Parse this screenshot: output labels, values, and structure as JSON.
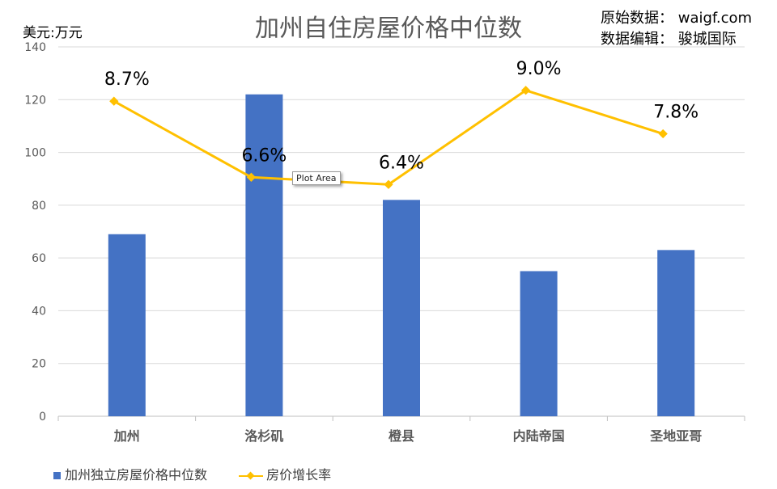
{
  "header": {
    "title": "加州自住房屋价格中位数",
    "unit_label": "美元:万元",
    "source_line": "原始数据：  waigf.com",
    "editor_line": "数据编辑：  骏城国际"
  },
  "tooltip": {
    "label": "Plot Area"
  },
  "colors": {
    "bar": "#4472C4",
    "line": "#FFC000",
    "grid": "#D9D9D9",
    "axis_text": "#595959"
  },
  "legend": {
    "bar_label": "加州独立房屋价格中位数",
    "line_label": "房价增长率"
  },
  "chart_data": {
    "type": "bar",
    "categories": [
      "加州",
      "洛杉矶",
      "橙县",
      "内陆帝国",
      "圣地亚哥"
    ],
    "series": [
      {
        "name": "加州独立房屋价格中位数",
        "type": "bar",
        "values": [
          69,
          122,
          82,
          55,
          63
        ]
      },
      {
        "name": "房价增长率",
        "type": "line",
        "values": [
          8.7,
          6.6,
          6.4,
          9.0,
          7.8
        ],
        "labels": [
          "8.7%",
          "6.6%",
          "6.4%",
          "9.0%",
          "7.8%"
        ]
      }
    ],
    "ylim": [
      0,
      140
    ],
    "yticks": [
      0,
      20,
      40,
      60,
      80,
      100,
      120,
      140
    ],
    "y2lim": [
      0,
      10.2
    ],
    "grid": true,
    "legend_position": "bottom-left"
  }
}
